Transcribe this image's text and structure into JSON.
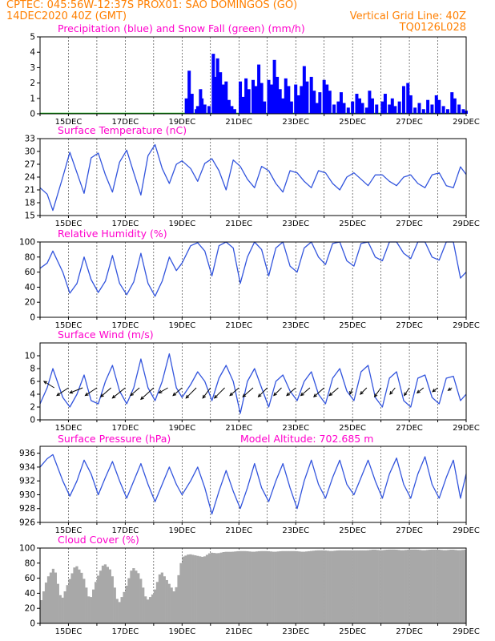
{
  "header": {
    "line1": "CPTEC:  045:56W-12:37S   PROX01: SAO DOMINGOS (GO)",
    "line2_left": "14DEC2020 40Z (GMT)",
    "line2_right": "Vertical Grid Line: 40Z",
    "code": "TQ0126L028"
  },
  "colors": {
    "header": "#ff7f00",
    "panel_title": "#ff00cc",
    "precip": "#0000ff",
    "snow": "#00aa00",
    "line": "#3355dd",
    "wind_arrow": "#000000",
    "cloud": "#a8a8a8",
    "grid": "#000000"
  },
  "x_axis": {
    "start": "14DEC2020",
    "end": "29DEC2020",
    "tick_labels": [
      "15DEC",
      "17DEC",
      "19DEC",
      "21DEC",
      "23DEC",
      "25DEC",
      "27DEC",
      "29DEC"
    ]
  },
  "chart_data": [
    {
      "id": "precip",
      "type": "bar",
      "title": "Precipitation (blue) and Snow Fall (green) (mm/h)",
      "ylim": [
        0,
        5
      ],
      "yticks": [
        0,
        1,
        2,
        3,
        4,
        5
      ],
      "grid": "dashed vertical",
      "series": [
        {
          "name": "blue",
          "color": "#0000ff",
          "x": [
            19.15,
            19.25,
            19.35,
            19.5,
            19.55,
            19.65,
            19.7,
            19.8,
            19.95,
            20.1,
            20.2,
            20.25,
            20.3,
            20.35,
            20.45,
            20.5,
            20.55,
            20.65,
            20.75,
            20.85,
            21.05,
            21.15,
            21.25,
            21.35,
            21.5,
            21.6,
            21.7,
            21.8,
            21.9,
            22.05,
            22.15,
            22.25,
            22.35,
            22.45,
            22.55,
            22.65,
            22.75,
            22.85,
            23.0,
            23.1,
            23.2,
            23.3,
            23.4,
            23.55,
            23.65,
            23.75,
            23.85,
            24.0,
            24.1,
            24.2,
            24.35,
            24.5,
            24.6,
            24.7,
            24.85,
            25.0,
            25.15,
            25.25,
            25.35,
            25.5,
            25.6,
            25.7,
            25.85,
            26.05,
            26.15,
            26.3,
            26.4,
            26.5,
            26.65,
            26.8,
            26.95,
            27.05,
            27.2,
            27.35,
            27.5,
            27.65,
            27.8,
            27.95,
            28.05,
            28.2,
            28.35,
            28.5,
            28.6,
            28.75,
            28.9,
            29.0
          ],
          "values": [
            1.0,
            2.8,
            1.3,
            0.3,
            0.5,
            1.6,
            1.0,
            0.6,
            0.5,
            3.9,
            2.4,
            3.6,
            2.3,
            2.7,
            1.9,
            1.6,
            2.1,
            0.9,
            0.5,
            0.3,
            2.1,
            1.1,
            2.3,
            1.6,
            2.2,
            1.8,
            3.2,
            2.0,
            0.8,
            2.2,
            1.9,
            3.5,
            2.4,
            1.6,
            1.0,
            2.3,
            1.8,
            0.8,
            1.9,
            1.2,
            1.8,
            3.1,
            2.1,
            2.4,
            1.5,
            0.7,
            1.4,
            2.2,
            1.9,
            1.5,
            0.6,
            0.8,
            1.4,
            0.7,
            0.4,
            0.8,
            1.3,
            1.0,
            0.7,
            0.4,
            1.5,
            1.0,
            0.6,
            0.8,
            1.3,
            0.6,
            1.0,
            0.5,
            0.8,
            1.8,
            2.0,
            1.2,
            0.4,
            0.7,
            0.3,
            0.9,
            0.6,
            1.2,
            0.9,
            0.5,
            0.3,
            1.4,
            1.0,
            0.6,
            0.3,
            0.2
          ]
        },
        {
          "name": "green",
          "color": "#00aa00",
          "x": [],
          "values": []
        }
      ]
    },
    {
      "id": "temp",
      "type": "line",
      "title": "Surface Temperature (nC)",
      "ylim": [
        15,
        33
      ],
      "yticks": [
        15,
        18,
        21,
        24,
        27,
        30,
        33
      ],
      "grid": "dashed vertical",
      "x": [
        14.0,
        14.25,
        14.45,
        14.8,
        15.05,
        15.3,
        15.55,
        15.8,
        16.05,
        16.3,
        16.55,
        16.8,
        17.05,
        17.3,
        17.55,
        17.8,
        18.05,
        18.3,
        18.55,
        18.8,
        19.0,
        19.3,
        19.55,
        19.8,
        20.05,
        20.3,
        20.55,
        20.8,
        21.05,
        21.3,
        21.55,
        21.8,
        22.05,
        22.3,
        22.55,
        22.8,
        23.05,
        23.3,
        23.55,
        23.8,
        24.05,
        24.3,
        24.55,
        24.8,
        25.05,
        25.3,
        25.55,
        25.8,
        26.05,
        26.3,
        26.55,
        26.8,
        27.05,
        27.3,
        27.55,
        27.8,
        28.05,
        28.3,
        28.55,
        28.8,
        29.0
      ],
      "values": [
        21.5,
        20.0,
        16.2,
        24.0,
        29.8,
        25.0,
        20.2,
        28.5,
        29.6,
        24.5,
        20.5,
        27.5,
        30.3,
        25.0,
        19.8,
        29.0,
        31.6,
        26.0,
        22.5,
        27.0,
        27.8,
        26.0,
        23.0,
        27.2,
        28.3,
        25.5,
        21.0,
        28.0,
        26.5,
        23.5,
        21.5,
        26.5,
        25.5,
        22.5,
        20.5,
        25.5,
        25.0,
        23.0,
        21.5,
        25.5,
        25.0,
        22.5,
        21.0,
        24.0,
        25.0,
        23.5,
        22.0,
        24.5,
        24.5,
        23.0,
        22.0,
        24.0,
        24.5,
        22.5,
        21.5,
        24.5,
        25.0,
        22.0,
        21.5,
        26.4,
        24.6
      ]
    },
    {
      "id": "rh",
      "type": "line",
      "title": "Relative Humidity (%)",
      "ylim": [
        0,
        100
      ],
      "yticks": [
        0,
        20,
        40,
        60,
        80,
        100
      ],
      "grid": "dashed vertical",
      "x": [
        14.0,
        14.25,
        14.45,
        14.8,
        15.05,
        15.3,
        15.55,
        15.8,
        16.05,
        16.3,
        16.55,
        16.8,
        17.05,
        17.3,
        17.55,
        17.8,
        18.05,
        18.3,
        18.55,
        18.8,
        19.0,
        19.3,
        19.55,
        19.8,
        20.05,
        20.3,
        20.55,
        20.8,
        21.05,
        21.3,
        21.55,
        21.8,
        22.05,
        22.3,
        22.55,
        22.8,
        23.05,
        23.3,
        23.55,
        23.8,
        24.05,
        24.3,
        24.55,
        24.8,
        25.05,
        25.3,
        25.55,
        25.8,
        26.05,
        26.3,
        26.55,
        26.8,
        27.05,
        27.3,
        27.55,
        27.8,
        28.05,
        28.3,
        28.55,
        28.8,
        29.0
      ],
      "values": [
        65.0,
        72.0,
        88.0,
        60.0,
        32.0,
        45.0,
        80.0,
        50.0,
        33.0,
        48.0,
        82.0,
        45.0,
        30.0,
        47.0,
        85.0,
        45.0,
        28.0,
        48.0,
        80.0,
        62.0,
        72.0,
        95.0,
        99.0,
        88.0,
        55.0,
        95.0,
        100.0,
        92.0,
        45.0,
        80.0,
        100.0,
        90.0,
        55.0,
        92.0,
        100.0,
        68.0,
        60.0,
        92.0,
        100.0,
        80.0,
        70.0,
        98.0,
        100.0,
        75.0,
        68.0,
        98.0,
        100.0,
        80.0,
        75.0,
        100.0,
        100.0,
        85.0,
        78.0,
        100.0,
        100.0,
        80.0,
        76.0,
        100.0,
        100.0,
        52.0,
        60.0
      ]
    },
    {
      "id": "wind",
      "type": "line",
      "title": "Surface Wind (m/s)",
      "ylim": [
        0,
        12
      ],
      "yticks": [
        0,
        2,
        4,
        6,
        8,
        10
      ],
      "grid": "dashed vertical",
      "x": [
        14.0,
        14.25,
        14.45,
        14.8,
        15.05,
        15.3,
        15.55,
        15.8,
        16.05,
        16.3,
        16.55,
        16.8,
        17.05,
        17.3,
        17.55,
        17.8,
        18.05,
        18.3,
        18.55,
        18.8,
        19.0,
        19.3,
        19.55,
        19.8,
        20.05,
        20.3,
        20.55,
        20.8,
        21.05,
        21.3,
        21.55,
        21.8,
        22.05,
        22.3,
        22.55,
        22.8,
        23.05,
        23.3,
        23.55,
        23.8,
        24.05,
        24.3,
        24.55,
        24.8,
        25.05,
        25.3,
        25.55,
        25.8,
        26.05,
        26.3,
        26.55,
        26.8,
        27.05,
        27.3,
        27.55,
        27.8,
        28.05,
        28.3,
        28.55,
        28.8,
        29.0
      ],
      "values": [
        2.5,
        5.0,
        8.0,
        3.5,
        2.0,
        4.0,
        7.0,
        3.0,
        2.5,
        6.0,
        8.5,
        4.5,
        2.5,
        5.0,
        9.5,
        5.0,
        3.0,
        6.0,
        10.3,
        5.0,
        3.5,
        5.5,
        7.5,
        6.0,
        3.0,
        6.5,
        8.5,
        6.0,
        1.0,
        6.0,
        8.0,
        5.0,
        2.0,
        6.0,
        7.0,
        4.5,
        3.0,
        6.0,
        7.5,
        4.0,
        2.5,
        6.5,
        8.0,
        4.5,
        3.0,
        7.5,
        8.5,
        3.5,
        2.0,
        6.5,
        7.5,
        3.0,
        2.0,
        6.5,
        7.0,
        3.5,
        2.5,
        6.5,
        6.8,
        3.0,
        4.0
      ],
      "vectors": [
        {
          "day": 14.5,
          "u": -4.0,
          "v": 2.5
        },
        {
          "day": 15.0,
          "u": -4.5,
          "v": -3.0
        },
        {
          "day": 15.5,
          "u": -5.0,
          "v": -2.0
        },
        {
          "day": 16.0,
          "u": -4.5,
          "v": -3.0
        },
        {
          "day": 16.5,
          "u": -4.0,
          "v": -3.5
        },
        {
          "day": 17.0,
          "u": -5.0,
          "v": -4.0
        },
        {
          "day": 17.5,
          "u": -3.5,
          "v": -3.0
        },
        {
          "day": 18.0,
          "u": -5.0,
          "v": -4.5
        },
        {
          "day": 18.5,
          "u": -3.5,
          "v": -2.0
        },
        {
          "day": 19.0,
          "u": -3.5,
          "v": -3.0
        },
        {
          "day": 19.5,
          "u": -4.0,
          "v": -4.0
        },
        {
          "day": 20.0,
          "u": -3.0,
          "v": -4.0
        },
        {
          "day": 20.5,
          "u": -4.0,
          "v": -4.0
        },
        {
          "day": 21.0,
          "u": -3.5,
          "v": -3.0
        },
        {
          "day": 21.5,
          "u": -4.0,
          "v": -3.5
        },
        {
          "day": 22.0,
          "u": -3.5,
          "v": -3.5
        },
        {
          "day": 22.5,
          "u": -3.0,
          "v": -3.0
        },
        {
          "day": 23.0,
          "u": -3.5,
          "v": -3.0
        },
        {
          "day": 23.5,
          "u": -3.5,
          "v": -3.0
        },
        {
          "day": 24.0,
          "u": -4.0,
          "v": -3.5
        },
        {
          "day": 24.5,
          "u": -3.5,
          "v": -3.0
        },
        {
          "day": 25.0,
          "u": -1.0,
          "v": -2.5
        },
        {
          "day": 25.5,
          "u": -2.5,
          "v": -2.5
        },
        {
          "day": 26.0,
          "u": -2.5,
          "v": -3.5
        },
        {
          "day": 26.5,
          "u": -2.0,
          "v": -2.5
        },
        {
          "day": 27.0,
          "u": -2.0,
          "v": -3.0
        },
        {
          "day": 27.5,
          "u": -2.5,
          "v": -2.0
        },
        {
          "day": 28.0,
          "u": -2.0,
          "v": -1.5
        },
        {
          "day": 28.5,
          "u": -1.5,
          "v": -1.0
        }
      ]
    },
    {
      "id": "pres",
      "type": "line",
      "title": "Surface Pressure (hPa)",
      "subtitle": "Model Altitude: 702.685 m",
      "ylim": [
        926,
        937
      ],
      "yticks": [
        926,
        928,
        930,
        932,
        934,
        936
      ],
      "grid": "dashed vertical",
      "x": [
        14.0,
        14.25,
        14.45,
        14.8,
        15.05,
        15.3,
        15.55,
        15.8,
        16.05,
        16.3,
        16.55,
        16.8,
        17.05,
        17.3,
        17.55,
        17.8,
        18.05,
        18.3,
        18.55,
        18.8,
        19.0,
        19.3,
        19.55,
        19.8,
        20.05,
        20.3,
        20.55,
        20.8,
        21.05,
        21.3,
        21.55,
        21.8,
        22.05,
        22.3,
        22.55,
        22.8,
        23.05,
        23.3,
        23.55,
        23.8,
        24.05,
        24.3,
        24.55,
        24.8,
        25.05,
        25.3,
        25.55,
        25.8,
        26.05,
        26.3,
        26.55,
        26.8,
        27.05,
        27.3,
        27.55,
        27.8,
        28.05,
        28.3,
        28.55,
        28.8,
        29.0
      ],
      "values": [
        934.0,
        935.2,
        935.8,
        932.0,
        929.8,
        932.0,
        935.0,
        933.0,
        930.0,
        932.5,
        934.8,
        932.0,
        929.5,
        932.0,
        934.5,
        931.5,
        929.0,
        931.5,
        934.0,
        931.5,
        930.0,
        932.0,
        934.0,
        931.0,
        927.2,
        930.5,
        933.5,
        930.5,
        928.0,
        931.0,
        934.5,
        931.0,
        929.0,
        932.0,
        934.5,
        931.0,
        928.0,
        932.0,
        935.0,
        931.5,
        929.5,
        932.5,
        935.0,
        931.5,
        930.0,
        932.5,
        935.0,
        932.0,
        929.5,
        933.0,
        935.3,
        931.5,
        929.5,
        933.0,
        935.5,
        931.5,
        929.5,
        932.5,
        935.0,
        929.5,
        933.0
      ]
    },
    {
      "id": "cloud",
      "type": "area",
      "title": "Cloud Cover (%)",
      "ylim": [
        0,
        100
      ],
      "yticks": [
        0,
        20,
        40,
        60,
        80,
        100
      ],
      "grid": "dashed vertical",
      "color": "#a8a8a8",
      "x": [
        14.0,
        14.25,
        14.5,
        14.75,
        15.0,
        15.25,
        15.5,
        15.75,
        16.0,
        16.25,
        16.5,
        16.75,
        17.0,
        17.25,
        17.5,
        17.75,
        18.0,
        18.25,
        18.5,
        18.75,
        19.0,
        19.25,
        19.5,
        19.75,
        20.0,
        20.25,
        20.5,
        20.75,
        21.0,
        21.25,
        21.5,
        21.75,
        22.0,
        22.25,
        22.5,
        22.75,
        23.0,
        23.25,
        23.5,
        23.75,
        24.0,
        24.25,
        24.5,
        24.75,
        25.0,
        25.25,
        25.5,
        25.75,
        26.0,
        26.25,
        26.5,
        26.75,
        27.0,
        27.25,
        27.5,
        27.75,
        28.0,
        28.25,
        28.5,
        28.75,
        29.0
      ],
      "values": [
        25,
        60,
        75,
        30,
        55,
        78,
        65,
        30,
        60,
        80,
        70,
        25,
        45,
        75,
        65,
        30,
        40,
        70,
        55,
        40,
        88,
        92,
        90,
        88,
        94,
        93,
        95,
        95,
        96,
        96,
        95,
        96,
        96,
        95,
        96,
        96,
        96,
        95,
        96,
        97,
        97,
        96,
        97,
        97,
        97,
        97,
        97,
        98,
        97,
        98,
        98,
        97,
        98,
        98,
        97,
        98,
        98,
        97,
        98,
        97,
        98
      ]
    }
  ]
}
